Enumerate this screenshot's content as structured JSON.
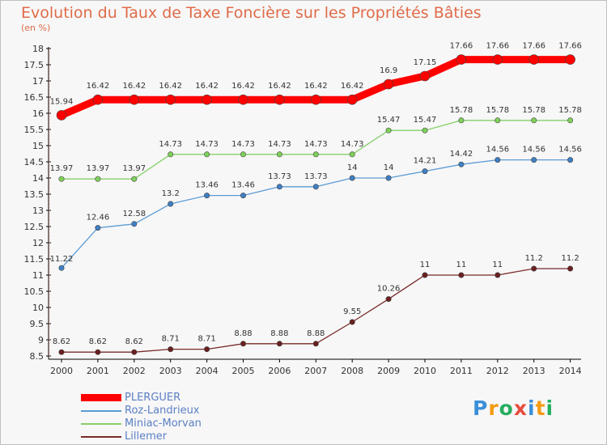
{
  "title": "Evolution du Taux de Taxe Foncière sur les Propriétés Bâties",
  "subtitle": "(en %)",
  "logo": {
    "letters": [
      "P",
      "r",
      "o",
      "x",
      "i",
      "t",
      "i"
    ],
    "colors": [
      "#3b8fd9",
      "#f39c12",
      "#27ae60",
      "#e74c3c",
      "#3b8fd9",
      "#f39c12",
      "#27ae60"
    ]
  },
  "chart_data": {
    "type": "line",
    "title": "Evolution du Taux de Taxe Foncière sur les Propriétés Bâties",
    "subtitle": "(en %)",
    "x": [
      "2000",
      "2001",
      "2002",
      "2003",
      "2004",
      "2005",
      "2006",
      "2007",
      "2008",
      "2009",
      "2010",
      "2011",
      "2012",
      "2013",
      "2014"
    ],
    "ylim": [
      8.5,
      18
    ],
    "yticks": [
      "8.5",
      "9",
      "9.5",
      "10",
      "10.5",
      "11",
      "11.5",
      "12",
      "12.5",
      "13",
      "13.5",
      "14",
      "14.5",
      "15",
      "15.5",
      "16",
      "16.5",
      "17",
      "17.5",
      "18"
    ],
    "grid": false,
    "legend_position": "bottom-left",
    "series": [
      {
        "name": "PLERGUER",
        "color": "#ff0000",
        "values": [
          15.94,
          16.42,
          16.42,
          16.42,
          16.42,
          16.42,
          16.42,
          16.42,
          16.42,
          16.9,
          17.15,
          17.66,
          17.66,
          17.66,
          17.66
        ],
        "labels": [
          "15.94",
          "16.42",
          "16.42",
          "16.42",
          "16.42",
          "16.42",
          "16.42",
          "16.42",
          "16.42",
          "16.9",
          "17.15",
          "17.66",
          "17.66",
          "17.66",
          "17.66"
        ]
      },
      {
        "name": "Roz-Landrieux",
        "color": "#5b9bd5",
        "values": [
          11.22,
          12.46,
          12.58,
          13.2,
          13.46,
          13.46,
          13.73,
          13.73,
          14,
          14,
          14.21,
          14.42,
          14.56,
          14.56,
          14.56
        ],
        "labels": [
          "11.22",
          "12.46",
          "12.58",
          "13.2",
          "13.46",
          "13.46",
          "13.73",
          "13.73",
          "14",
          "14",
          "14.21",
          "14.42",
          "14.56",
          "14.56",
          "14.56"
        ]
      },
      {
        "name": "Miniac-Morvan",
        "color": "#86d06a",
        "values": [
          13.97,
          13.97,
          13.97,
          14.73,
          14.73,
          14.73,
          14.73,
          14.73,
          14.73,
          15.47,
          15.47,
          15.78,
          15.78,
          15.78,
          15.78
        ],
        "labels": [
          "13.97",
          "13.97",
          "13.97",
          "14.73",
          "14.73",
          "14.73",
          "14.73",
          "14.73",
          "14.73",
          "15.47",
          "15.47",
          "15.78",
          "15.78",
          "15.78",
          "15.78"
        ]
      },
      {
        "name": "Lillemer",
        "color": "#7a2a2a",
        "values": [
          8.62,
          8.62,
          8.62,
          8.71,
          8.71,
          8.88,
          8.88,
          8.88,
          9.55,
          10.26,
          11,
          11,
          11,
          11.2,
          11.2
        ],
        "labels": [
          "8.62",
          "8.62",
          "8.62",
          "8.71",
          "8.71",
          "8.88",
          "8.88",
          "8.88",
          "9.55",
          "10.26",
          "11",
          "11",
          "11",
          "11.2",
          "11.2"
        ]
      }
    ]
  }
}
